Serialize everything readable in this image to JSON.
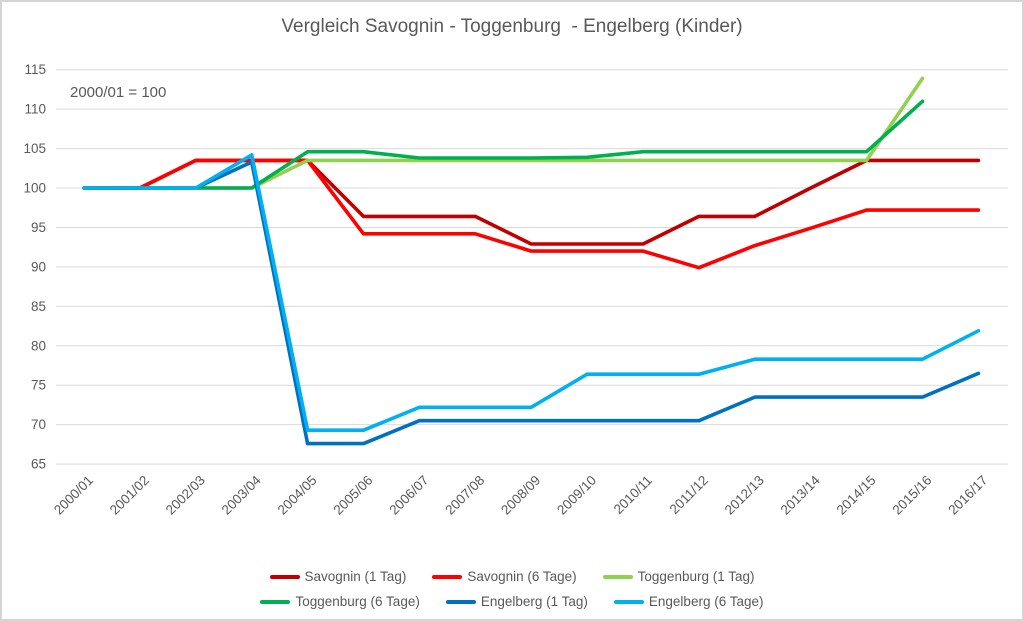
{
  "chart_data": {
    "type": "line",
    "title": "Vergleich Savognin - Toggenburg  - Engelberg (Kinder)",
    "annotation": "2000/01 = 100",
    "categories": [
      "2000/01",
      "2001/02",
      "2002/03",
      "2003/04",
      "2004/05",
      "2005/06",
      "2006/07",
      "2007/08",
      "2008/09",
      "2009/10",
      "2010/11",
      "2011/12",
      "2012/13",
      "2013/14",
      "2014/15",
      "2015/16",
      "2016/17"
    ],
    "series": [
      {
        "name": "Savognin (1 Tag)",
        "color": "#C00000",
        "values": [
          100,
          100,
          103.5,
          103.5,
          103.5,
          96.4,
          96.4,
          96.4,
          92.9,
          92.9,
          92.9,
          96.4,
          96.4,
          100,
          103.5,
          103.5,
          103.5
        ]
      },
      {
        "name": "Savognin (6 Tage)",
        "color": "#FF0000",
        "values": [
          100,
          100,
          103.5,
          103.5,
          103.5,
          94.2,
          94.2,
          94.2,
          92,
          92,
          92,
          89.9,
          92.7,
          94.9,
          97.2,
          97.2,
          97.2
        ]
      },
      {
        "name": "Toggenburg (1 Tag)",
        "color": "#92D050",
        "values": [
          100,
          100,
          100,
          100,
          103.5,
          103.5,
          103.5,
          103.5,
          103.5,
          103.5,
          103.5,
          103.5,
          103.5,
          103.5,
          103.5,
          113.9,
          null
        ]
      },
      {
        "name": "Toggenburg (6 Tage)",
        "color": "#00B050",
        "values": [
          100,
          100,
          100,
          100,
          104.6,
          104.6,
          103.8,
          103.8,
          103.8,
          103.9,
          104.6,
          104.6,
          104.6,
          104.6,
          104.6,
          111,
          null
        ]
      },
      {
        "name": "Engelberg (1 Tag)",
        "color": "#0070C0",
        "values": [
          100,
          100,
          100,
          103.3,
          67.6,
          67.6,
          70.5,
          70.5,
          70.5,
          70.5,
          70.5,
          70.5,
          73.5,
          73.5,
          73.5,
          73.5,
          76.5
        ]
      },
      {
        "name": "Engelberg (6 Tage)",
        "color": "#00B0F0",
        "values": [
          100,
          100,
          100,
          104.2,
          69.3,
          69.3,
          72.2,
          72.2,
          72.2,
          76.4,
          76.4,
          76.4,
          78.3,
          78.3,
          78.3,
          78.3,
          81.9
        ]
      }
    ],
    "ylim": [
      65,
      115
    ],
    "ytick_step": 5,
    "yticks": [
      65,
      70,
      75,
      80,
      85,
      90,
      95,
      100,
      105,
      110,
      115
    ],
    "grid": true,
    "legend_position": "bottom",
    "axis_text_color": "#595959",
    "grid_color": "#D9D9D9"
  }
}
